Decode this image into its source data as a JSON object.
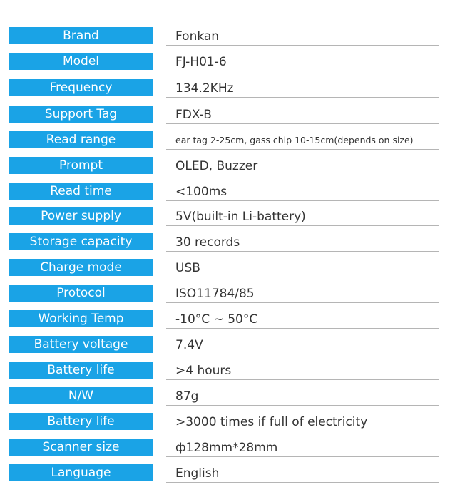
{
  "specs": [
    {
      "label": "Brand",
      "value": "Fonkan"
    },
    {
      "label": "Model",
      "value": "FJ-H01-6"
    },
    {
      "label": "Frequency",
      "value": "134.2KHz"
    },
    {
      "label": "Support Tag",
      "value": "FDX-B"
    },
    {
      "label": "Read range",
      "value": "ear tag 2-25cm, gass chip 10-15cm(depends on size)"
    },
    {
      "label": "Prompt",
      "value": "OLED, Buzzer"
    },
    {
      "label": "Read time",
      "value": "<100ms"
    },
    {
      "label": "Power supply",
      "value": "5V(built-in Li-battery)"
    },
    {
      "label": "Storage capacity",
      "value": "30 records"
    },
    {
      "label": "Charge mode",
      "value": "USB"
    },
    {
      "label": "Protocol",
      "value": "ISO11784/85"
    },
    {
      "label": "Working Temp",
      "value": "-10°C ~ 50°C"
    },
    {
      "label": "Battery voltage",
      "value": "7.4V"
    },
    {
      "label": "Battery life",
      "value": ">4 hours"
    },
    {
      "label": "N/W",
      "value": "87g"
    },
    {
      "label": "Battery life",
      "value": ">3000 times if full of electricity"
    },
    {
      "label": "Scanner size",
      "value": "ф128mm*28mm"
    },
    {
      "label": "Language",
      "value": "English"
    }
  ],
  "colors": {
    "label_bg": "#1aa3e6",
    "label_text": "#ffffff",
    "value_text": "#333333",
    "rule": "#b5b5b5"
  }
}
